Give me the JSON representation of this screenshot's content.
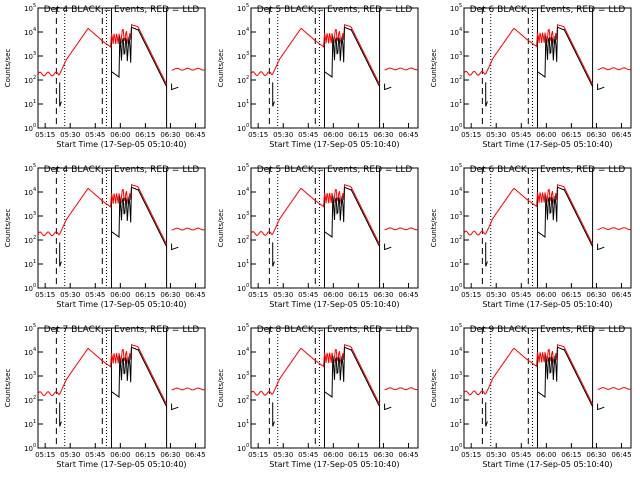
{
  "figure": {
    "title_template": "Det {det} BLACK = Events, RED = LLD",
    "xlabel": "Start Time (17-Sep-05 05:10:40)",
    "ylabel": "Counts/sec",
    "xticks": [
      "05:15",
      "05:30",
      "05:45",
      "06:00",
      "06:15",
      "06:30",
      "06:45"
    ],
    "ytick_exps": [
      "0",
      "1",
      "2",
      "3",
      "4",
      "5"
    ],
    "colors": {
      "events": "#000000",
      "lld": "#ff0000",
      "frame": "#000000"
    }
  },
  "chart_data": [
    {
      "type": "line",
      "det": "4",
      "title": "Det 4 BLACK = Events, RED = LLD",
      "xlabel": "Start Time (17-Sep-05 05:10:40)",
      "ylabel": "Counts/sec",
      "xlim_min": [
        0,
        100
      ],
      "ylim_log10": [
        0,
        5
      ],
      "series": [
        {
          "name": "Events",
          "color": "#000000"
        },
        {
          "name": "LLD",
          "color": "#ff0000"
        }
      ]
    },
    {
      "type": "line",
      "det": "5",
      "title": "Det 5 BLACK = Events, RED = LLD",
      "xlabel": "Start Time (17-Sep-05 05:10:40)",
      "ylabel": "Counts/sec",
      "xlim_min": [
        0,
        100
      ],
      "ylim_log10": [
        0,
        5
      ],
      "series": [
        {
          "name": "Events",
          "color": "#000000"
        },
        {
          "name": "LLD",
          "color": "#ff0000"
        }
      ]
    },
    {
      "type": "line",
      "det": "6",
      "title": "Det 6 BLACK = Events, RED = LLD",
      "xlabel": "Start Time (17-Sep-05 05:10:40)",
      "ylabel": "Counts/sec",
      "xlim_min": [
        0,
        100
      ],
      "ylim_log10": [
        0,
        5
      ],
      "series": [
        {
          "name": "Events",
          "color": "#000000"
        },
        {
          "name": "LLD",
          "color": "#ff0000"
        }
      ]
    },
    {
      "type": "line",
      "det": "4",
      "title": "Det 4 BLACK = Events, RED = LLD",
      "xlabel": "Start Time (17-Sep-05 05:10:40)",
      "ylabel": "Counts/sec",
      "xlim_min": [
        0,
        100
      ],
      "ylim_log10": [
        0,
        5
      ],
      "series": [
        {
          "name": "Events",
          "color": "#000000"
        },
        {
          "name": "LLD",
          "color": "#ff0000"
        }
      ]
    },
    {
      "type": "line",
      "det": "5",
      "title": "Det 5 BLACK = Events, RED = LLD",
      "xlabel": "Start Time (17-Sep-05 05:10:40)",
      "ylabel": "Counts/sec",
      "xlim_min": [
        0,
        100
      ],
      "ylim_log10": [
        0,
        5
      ],
      "series": [
        {
          "name": "Events",
          "color": "#000000"
        },
        {
          "name": "LLD",
          "color": "#ff0000"
        }
      ]
    },
    {
      "type": "line",
      "det": "6",
      "title": "Det 6 BLACK = Events, RED = LLD",
      "xlabel": "Start Time (17-Sep-05 05:10:40)",
      "ylabel": "Counts/sec",
      "xlim_min": [
        0,
        100
      ],
      "ylim_log10": [
        0,
        5
      ],
      "series": [
        {
          "name": "Events",
          "color": "#000000"
        },
        {
          "name": "LLD",
          "color": "#ff0000"
        }
      ]
    },
    {
      "type": "line",
      "det": "7",
      "title": "Det 7 BLACK = Events, RED = LLD",
      "xlabel": "Start Time (17-Sep-05 05:10:40)",
      "ylabel": "Counts/sec",
      "xlim_min": [
        0,
        100
      ],
      "ylim_log10": [
        0,
        5
      ],
      "series": [
        {
          "name": "Events",
          "color": "#000000"
        },
        {
          "name": "LLD",
          "color": "#ff0000"
        }
      ]
    },
    {
      "type": "line",
      "det": "8",
      "title": "Det 8 BLACK = Events, RED = LLD",
      "xlabel": "Start Time (17-Sep-05 05:10:40)",
      "ylabel": "Counts/sec",
      "xlim_min": [
        0,
        100
      ],
      "ylim_log10": [
        0,
        5
      ],
      "series": [
        {
          "name": "Events",
          "color": "#000000"
        },
        {
          "name": "LLD",
          "color": "#ff0000"
        }
      ]
    },
    {
      "type": "line",
      "det": "9",
      "title": "Det 9 BLACK = Events, RED = LLD",
      "xlabel": "Start Time (17-Sep-05 05:10:40)",
      "ylabel": "Counts/sec",
      "xlim_min": [
        0,
        100
      ],
      "ylim_log10": [
        0,
        5
      ],
      "series": [
        {
          "name": "Events",
          "color": "#000000"
        },
        {
          "name": "LLD",
          "color": "#ff0000"
        }
      ]
    }
  ]
}
